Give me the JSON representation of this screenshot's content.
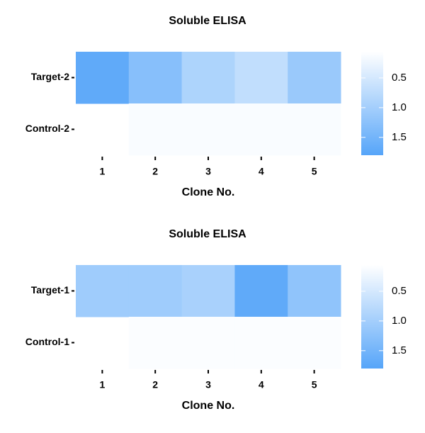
{
  "chart_data": [
    {
      "type": "heatmap",
      "title": "Soluble ELISA",
      "x_label": "Clone No.",
      "x_categories": [
        "1",
        "2",
        "3",
        "4",
        "5"
      ],
      "y_categories": [
        "Target-2",
        "Control-2"
      ],
      "values": [
        [
          1.7,
          1.3,
          0.9,
          0.7,
          1.1
        ],
        [
          null,
          0.12,
          0.12,
          0.12,
          0.12
        ]
      ],
      "clim": [
        0.06,
        1.8
      ],
      "cticks": [
        0.5,
        {
          "value": 1,
          "label": "1.0"
        },
        1.5
      ],
      "low_color": "#ffffff",
      "high_color": "#56a5f9"
    },
    {
      "type": "heatmap",
      "title": "Soluble ELISA",
      "x_label": "Clone No.",
      "x_categories": [
        "1",
        "2",
        "3",
        "4",
        "5"
      ],
      "y_categories": [
        "Target-1",
        "Control-1"
      ],
      "values": [
        [
          1.05,
          1.05,
          0.95,
          1.7,
          1.2
        ],
        [
          null,
          0.1,
          0.1,
          0.1,
          0.1
        ]
      ],
      "clim": [
        0.06,
        1.8
      ],
      "cticks": [
        0.5,
        {
          "value": 1,
          "label": "1.0"
        },
        1.5
      ],
      "low_color": "#ffffff",
      "high_color": "#56a5f9"
    }
  ]
}
